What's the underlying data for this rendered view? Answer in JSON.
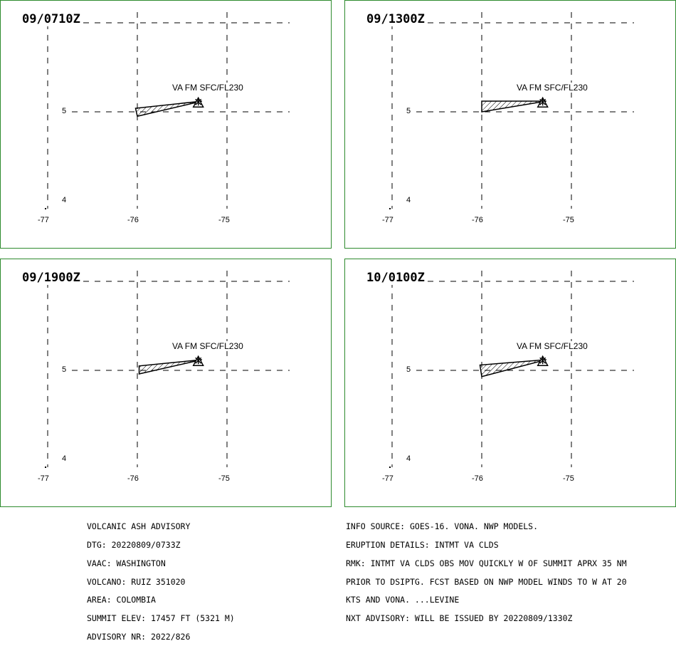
{
  "panels": [
    {
      "time": "09/0710Z",
      "cloud_label": "VA FM SFC/FL230",
      "polygon_lonlat": [
        [
          -76.0,
          5.05
        ],
        [
          -75.28,
          4.88
        ],
        [
          -76.02,
          4.96
        ]
      ]
    },
    {
      "time": "09/1300Z",
      "cloud_label": "VA FM SFC/FL230",
      "polygon_lonlat": [
        [
          -76.0,
          5.0
        ],
        [
          -75.28,
          4.88
        ],
        [
          -76.0,
          4.88
        ]
      ]
    },
    {
      "time": "09/1900Z",
      "cloud_label": "VA FM SFC/FL230",
      "polygon_lonlat": [
        [
          -75.98,
          5.04
        ],
        [
          -75.28,
          4.88
        ],
        [
          -75.98,
          4.95
        ]
      ]
    },
    {
      "time": "10/0100Z",
      "cloud_label": "VA FM SFC/FL230",
      "polygon_lonlat": [
        [
          -76.0,
          5.07
        ],
        [
          -75.28,
          4.88
        ],
        [
          -76.02,
          4.94
        ]
      ]
    }
  ],
  "map": {
    "lon_ticks": [
      -77,
      -76,
      -75
    ],
    "lat_ticks": [
      5,
      4
    ],
    "lon_tick_labels": [
      "-77",
      "-76",
      "-75"
    ],
    "lat_tick_labels": [
      "5",
      "4"
    ],
    "volcano_lonlat": [
      -75.32,
      4.89
    ],
    "frame_color": "#2e8b2e"
  },
  "advisory_left": [
    "VOLCANIC ASH ADVISORY",
    "DTG: 20220809/0733Z",
    "VAAC: WASHINGTON",
    "VOLCANO: RUIZ 351020",
    "AREA: COLOMBIA",
    "SUMMIT ELEV: 17457 FT (5321 M)",
    "ADVISORY NR: 2022/826"
  ],
  "advisory_right": [
    "INFO SOURCE: GOES-16. VONA. NWP MODELS.",
    "ERUPTION DETAILS: INTMT VA CLDS",
    "RMK: INTMT VA CLDS OBS MOV QUICKLY W OF SUMMIT APRX 35 NM",
    "PRIOR TO DSIPTG. FCST BASED ON NWP MODEL WINDS TO W AT 20",
    "KTS AND VONA. ...LEVINE",
    "NXT ADVISORY: WILL BE ISSUED BY 20220809/1330Z"
  ]
}
